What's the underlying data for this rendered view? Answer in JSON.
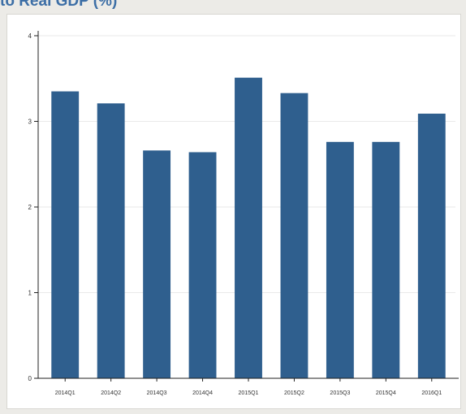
{
  "header": {
    "title": "to Real GDP (%)"
  },
  "colors": {
    "bar": "#2f5f8e",
    "title": "#3d6fa6",
    "axis": "#222222",
    "grid": "#e9e9e9"
  },
  "chart_data": {
    "type": "bar",
    "title": "to Real GDP (%)",
    "xlabel": "",
    "ylabel": "",
    "categories": [
      "2014Q1",
      "2014Q2",
      "2014Q3",
      "2014Q4",
      "2015Q1",
      "2015Q2",
      "2015Q3",
      "2015Q4",
      "2016Q1"
    ],
    "values": [
      3.35,
      3.21,
      2.66,
      2.64,
      3.51,
      3.33,
      2.76,
      2.76,
      3.09
    ],
    "ylim": [
      0,
      4
    ],
    "yticks": [
      0,
      1,
      2,
      3,
      4
    ],
    "grid": true,
    "legend": "none"
  }
}
